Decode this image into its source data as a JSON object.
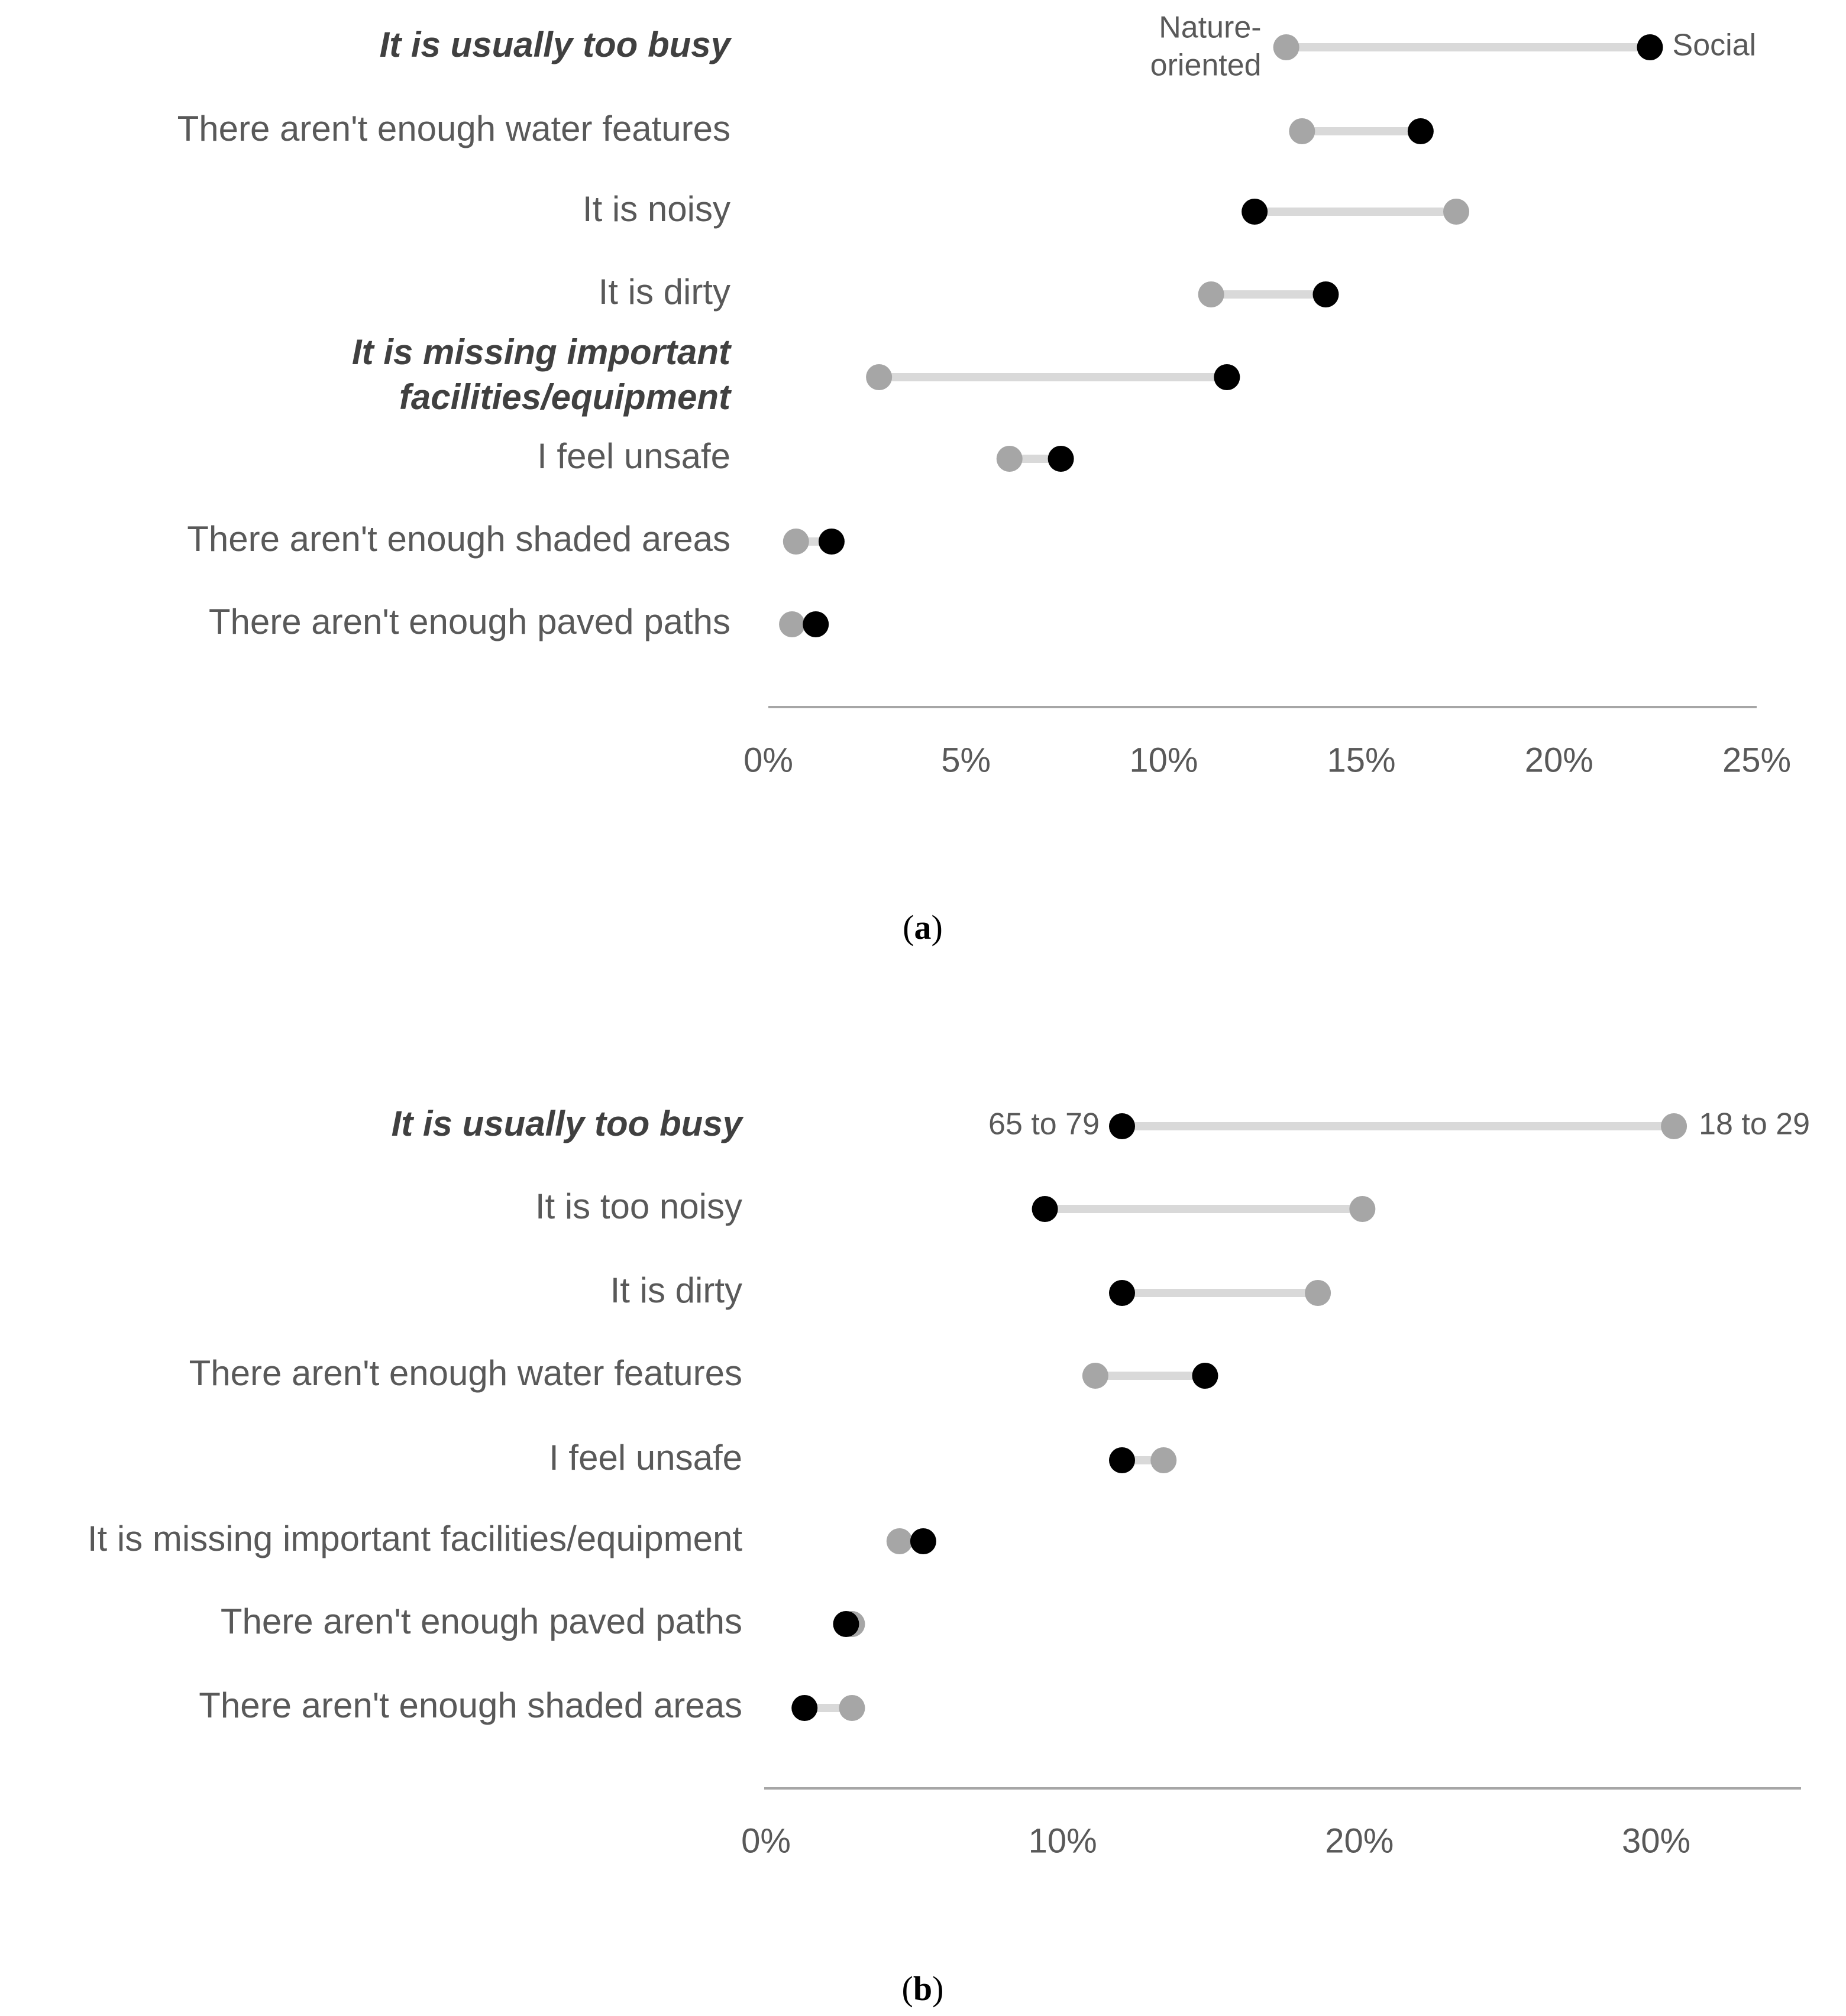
{
  "chart_data": [
    {
      "type": "dumbbell",
      "panel_label": "a",
      "x_ticks": [
        "0%",
        "5%",
        "10%",
        "15%",
        "20%",
        "25%"
      ],
      "x_tick_values": [
        0,
        5,
        10,
        15,
        20,
        25
      ],
      "xlim": [
        0,
        25
      ],
      "grid": false,
      "series": [
        {
          "name": "Nature-oriented",
          "label_lines": [
            "Nature-",
            "oriented"
          ],
          "color": "#a6a6a6"
        },
        {
          "name": "Social",
          "label_lines": [
            "Social"
          ],
          "color": "#000000"
        }
      ],
      "rows": [
        {
          "label_lines": [
            "It is usually too busy"
          ],
          "emphasis": true,
          "values": [
            13.1,
            22.3
          ]
        },
        {
          "label_lines": [
            "There aren't enough water features"
          ],
          "emphasis": false,
          "values": [
            13.5,
            16.5
          ]
        },
        {
          "label_lines": [
            "It is noisy"
          ],
          "emphasis": false,
          "values": [
            17.4,
            12.3
          ]
        },
        {
          "label_lines": [
            "It is dirty"
          ],
          "emphasis": false,
          "values": [
            11.2,
            14.1
          ]
        },
        {
          "label_lines": [
            "It is missing important",
            "facilities/equipment"
          ],
          "emphasis": true,
          "values": [
            2.8,
            11.6
          ]
        },
        {
          "label_lines": [
            "I feel unsafe"
          ],
          "emphasis": false,
          "values": [
            6.1,
            7.4
          ]
        },
        {
          "label_lines": [
            "There aren't enough shaded areas"
          ],
          "emphasis": false,
          "values": [
            0.7,
            1.6
          ]
        },
        {
          "label_lines": [
            "There aren't enough paved paths"
          ],
          "emphasis": false,
          "values": [
            0.6,
            1.2
          ]
        }
      ]
    },
    {
      "type": "dumbbell",
      "panel_label": "b",
      "x_ticks": [
        "0%",
        "10%",
        "20%",
        "30%"
      ],
      "x_tick_values": [
        0,
        10,
        20,
        30
      ],
      "xlim": [
        0,
        35
      ],
      "grid": false,
      "series": [
        {
          "name": "65 to 79",
          "label_lines": [
            "65 to 79"
          ],
          "color": "#000000"
        },
        {
          "name": "18 to 29",
          "label_lines": [
            "18 to 29"
          ],
          "color": "#a6a6a6"
        }
      ],
      "rows": [
        {
          "label_lines": [
            "It is usually too busy"
          ],
          "emphasis": true,
          "values": [
            12.0,
            30.6
          ]
        },
        {
          "label_lines": [
            "It is too noisy"
          ],
          "emphasis": false,
          "values": [
            9.4,
            20.1
          ]
        },
        {
          "label_lines": [
            "It is dirty"
          ],
          "emphasis": false,
          "values": [
            12.0,
            18.6
          ]
        },
        {
          "label_lines": [
            "There aren't enough water features"
          ],
          "emphasis": false,
          "values": [
            14.8,
            11.1
          ]
        },
        {
          "label_lines": [
            "I feel unsafe"
          ],
          "emphasis": false,
          "values": [
            12.0,
            13.4
          ]
        },
        {
          "label_lines": [
            "It is missing important facilities/equipment"
          ],
          "emphasis": false,
          "values": [
            5.3,
            4.5
          ]
        },
        {
          "label_lines": [
            "There aren't enough paved paths"
          ],
          "emphasis": false,
          "values": [
            2.7,
            2.9
          ]
        },
        {
          "label_lines": [
            "There aren't enough shaded areas"
          ],
          "emphasis": false,
          "values": [
            1.3,
            2.9
          ]
        }
      ]
    }
  ]
}
